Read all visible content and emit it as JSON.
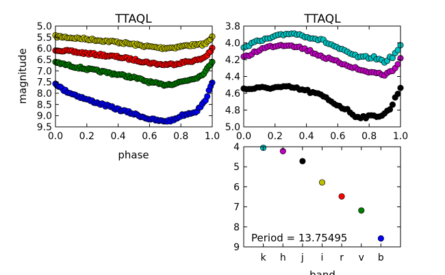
{
  "chart_data": [
    {
      "type": "scatter",
      "title": "TTAQL",
      "xlabel": "phase",
      "ylabel": "magnitude",
      "xlim": [
        0.0,
        1.0
      ],
      "ylim": [
        9.5,
        5.0
      ],
      "inverted_y": true,
      "xticks": [
        "0.0",
        "0.2",
        "0.4",
        "0.6",
        "0.8",
        "1.0"
      ],
      "yticks": [
        "5.0",
        "5.5",
        "6.0",
        "6.5",
        "7.0",
        "7.5",
        "8.0",
        "8.5",
        "9.0",
        "9.5"
      ],
      "series": [
        {
          "color": "#bfbf00",
          "shape": [
            [
              0.0,
              5.46
            ],
            [
              0.1,
              5.52
            ],
            [
              0.2,
              5.58
            ],
            [
              0.3,
              5.65
            ],
            [
              0.4,
              5.72
            ],
            [
              0.5,
              5.82
            ],
            [
              0.6,
              5.92
            ],
            [
              0.68,
              5.98
            ],
            [
              0.75,
              5.96
            ],
            [
              0.85,
              5.86
            ],
            [
              0.92,
              5.84
            ],
            [
              0.96,
              5.78
            ],
            [
              1.0,
              5.5
            ]
          ]
        },
        {
          "color": "#ff0000",
          "shape": [
            [
              0.0,
              6.05
            ],
            [
              0.1,
              6.14
            ],
            [
              0.2,
              6.22
            ],
            [
              0.3,
              6.3
            ],
            [
              0.4,
              6.38
            ],
            [
              0.5,
              6.5
            ],
            [
              0.6,
              6.64
            ],
            [
              0.68,
              6.72
            ],
            [
              0.75,
              6.7
            ],
            [
              0.85,
              6.58
            ],
            [
              0.92,
              6.5
            ],
            [
              0.96,
              6.35
            ],
            [
              1.0,
              6.02
            ]
          ]
        },
        {
          "color": "#008000",
          "shape": [
            [
              0.0,
              6.62
            ],
            [
              0.1,
              6.78
            ],
            [
              0.2,
              6.92
            ],
            [
              0.3,
              7.04
            ],
            [
              0.4,
              7.16
            ],
            [
              0.5,
              7.3
            ],
            [
              0.6,
              7.5
            ],
            [
              0.68,
              7.62
            ],
            [
              0.75,
              7.58
            ],
            [
              0.85,
              7.4
            ],
            [
              0.92,
              7.25
            ],
            [
              0.96,
              7.0
            ],
            [
              1.0,
              6.58
            ]
          ]
        },
        {
          "color": "#0000ff",
          "shape": [
            [
              0.0,
              7.55
            ],
            [
              0.05,
              7.85
            ],
            [
              0.1,
              8.0
            ],
            [
              0.2,
              8.28
            ],
            [
              0.3,
              8.5
            ],
            [
              0.4,
              8.72
            ],
            [
              0.5,
              8.92
            ],
            [
              0.6,
              9.15
            ],
            [
              0.68,
              9.25
            ],
            [
              0.75,
              9.2
            ],
            [
              0.8,
              9.0
            ],
            [
              0.9,
              8.8
            ],
            [
              0.95,
              8.4
            ],
            [
              1.0,
              7.55
            ]
          ]
        }
      ]
    },
    {
      "type": "scatter",
      "title": "TTAQL",
      "xlabel": "",
      "ylabel": "",
      "xlim": [
        0.0,
        1.0
      ],
      "ylim": [
        5.0,
        3.8
      ],
      "inverted_y": true,
      "xticks": [
        "0.0",
        "0.2",
        "0.4",
        "0.6",
        "0.8",
        "1.0"
      ],
      "yticks": [
        "3.8",
        "4.0",
        "4.2",
        "4.4",
        "4.6",
        "4.8",
        "5.0"
      ],
      "series": [
        {
          "color": "#00bfbf",
          "shape": [
            [
              0.0,
              4.04
            ],
            [
              0.1,
              3.98
            ],
            [
              0.2,
              3.93
            ],
            [
              0.3,
              3.88
            ],
            [
              0.4,
              3.92
            ],
            [
              0.5,
              3.97
            ],
            [
              0.58,
              4.04
            ],
            [
              0.66,
              4.12
            ],
            [
              0.75,
              4.18
            ],
            [
              0.82,
              4.17
            ],
            [
              0.9,
              4.22
            ],
            [
              0.96,
              4.15
            ],
            [
              1.0,
              4.03
            ]
          ]
        },
        {
          "color": "#bf00bf",
          "shape": [
            [
              0.0,
              4.18
            ],
            [
              0.1,
              4.08
            ],
            [
              0.2,
              4.03
            ],
            [
              0.3,
              4.02
            ],
            [
              0.4,
              4.08
            ],
            [
              0.5,
              4.16
            ],
            [
              0.58,
              4.22
            ],
            [
              0.66,
              4.26
            ],
            [
              0.75,
              4.33
            ],
            [
              0.82,
              4.35
            ],
            [
              0.9,
              4.38
            ],
            [
              0.96,
              4.32
            ],
            [
              1.0,
              4.18
            ]
          ]
        },
        {
          "color": "#000000",
          "shape": [
            [
              0.0,
              4.55
            ],
            [
              0.1,
              4.54
            ],
            [
              0.2,
              4.53
            ],
            [
              0.3,
              4.53
            ],
            [
              0.4,
              4.57
            ],
            [
              0.5,
              4.63
            ],
            [
              0.58,
              4.72
            ],
            [
              0.66,
              4.8
            ],
            [
              0.72,
              4.88
            ],
            [
              0.8,
              4.88
            ],
            [
              0.88,
              4.86
            ],
            [
              0.93,
              4.8
            ],
            [
              1.0,
              4.53
            ]
          ]
        }
      ]
    },
    {
      "type": "scatter",
      "title": "",
      "xlabel": "band",
      "ylabel": "",
      "ylim": [
        9.0,
        4.0
      ],
      "inverted_y": true,
      "categories": [
        "k",
        "h",
        "j",
        "i",
        "r",
        "v",
        "b"
      ],
      "yticks": [
        "4",
        "5",
        "6",
        "7",
        "8",
        "9"
      ],
      "values": [
        4.05,
        4.22,
        4.72,
        5.78,
        6.48,
        7.18,
        8.58
      ],
      "colors": [
        "#00bfbf",
        "#bf00bf",
        "#000000",
        "#bfbf00",
        "#ff0000",
        "#008000",
        "#0000ff"
      ],
      "annotation": "Period = 13.75495"
    }
  ]
}
